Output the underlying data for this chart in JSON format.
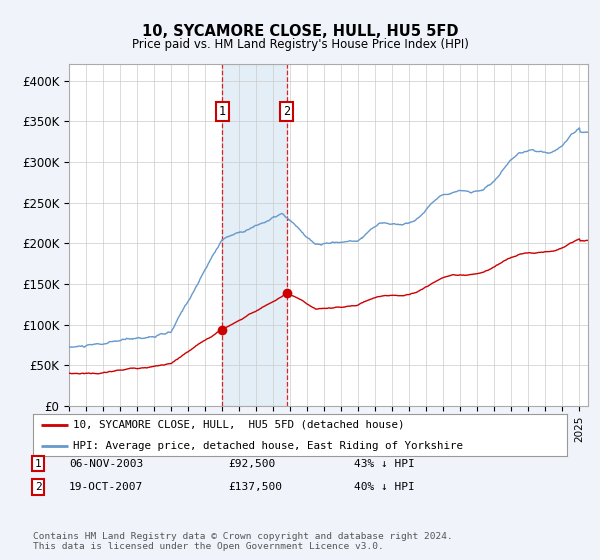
{
  "title": "10, SYCAMORE CLOSE, HULL, HU5 5FD",
  "subtitle": "Price paid vs. HM Land Registry's House Price Index (HPI)",
  "red_label": "10, SYCAMORE CLOSE, HULL,  HU5 5FD (detached house)",
  "blue_label": "HPI: Average price, detached house, East Riding of Yorkshire",
  "transaction1_date": "06-NOV-2003",
  "transaction1_price": "£92,500",
  "transaction1_hpi": "43% ↓ HPI",
  "transaction1_x": 2004.0,
  "transaction2_date": "19-OCT-2007",
  "transaction2_price": "£137,500",
  "transaction2_hpi": "40% ↓ HPI",
  "transaction2_x": 2007.8,
  "ylabel_ticks": [
    "£0",
    "£50K",
    "£100K",
    "£150K",
    "£200K",
    "£250K",
    "£300K",
    "£350K",
    "£400K"
  ],
  "ytick_values": [
    0,
    50000,
    100000,
    150000,
    200000,
    250000,
    300000,
    350000,
    400000
  ],
  "xlim": [
    1995.0,
    2025.5
  ],
  "ylim": [
    0,
    420000
  ],
  "footer": "Contains HM Land Registry data © Crown copyright and database right 2024.\nThis data is licensed under the Open Government Licence v3.0.",
  "bg_color": "#f0f4fa",
  "plot_bg_color": "#ffffff",
  "grid_color": "#cccccc",
  "red_color": "#cc0000",
  "blue_color": "#6699cc"
}
